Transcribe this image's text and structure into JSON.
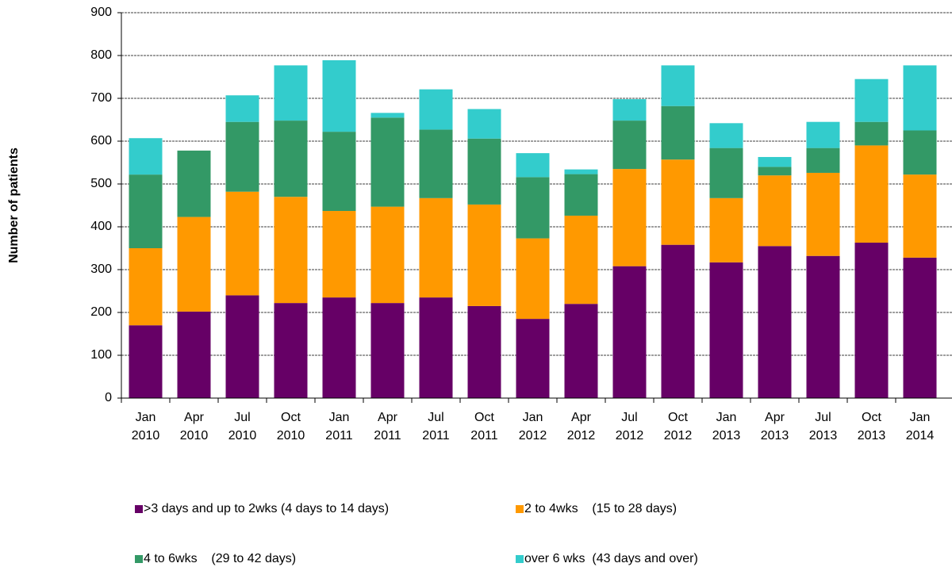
{
  "chart_data": {
    "type": "stacked_bar",
    "y_axis_label": "Number of patients",
    "categories": [
      "Jan 2010",
      "Apr 2010",
      "Jul 2010",
      "Oct 2010",
      "Jan 2011",
      "Apr 2011",
      "Jul 2011",
      "Oct 2011",
      "Jan 2012",
      "Apr 2012",
      "Jul 2012",
      "Oct 2012",
      "Jan 2013",
      "Apr 2013",
      "Jul 2013",
      "Oct 2013",
      "Jan 2014"
    ],
    "series": [
      {
        "name": ">3 days and up to 2wks (4 days to 14 days)",
        "color": "#660066",
        "values": [
          170,
          202,
          240,
          222,
          235,
          222,
          235,
          215,
          185,
          220,
          308,
          358,
          317,
          355,
          332,
          363,
          328
        ]
      },
      {
        "name": "2 to 4wks    (15 to 28 days)",
        "color": "#ff9900",
        "values": [
          180,
          221,
          242,
          248,
          202,
          225,
          232,
          237,
          188,
          206,
          227,
          199,
          150,
          165,
          194,
          227,
          194
        ]
      },
      {
        "name": "4 to 6wks    (29 to 42 days)",
        "color": "#339966",
        "values": [
          172,
          155,
          163,
          178,
          185,
          208,
          160,
          154,
          143,
          97,
          113,
          125,
          117,
          20,
          58,
          55,
          103
        ]
      },
      {
        "name": "over 6 wks  (43 days and over)",
        "color": "#33cccc",
        "values": [
          85,
          0,
          62,
          129,
          167,
          11,
          94,
          69,
          56,
          11,
          50,
          95,
          58,
          23,
          61,
          100,
          152
        ]
      }
    ],
    "ylim": [
      0,
      900
    ],
    "yticks": [
      0,
      100,
      200,
      300,
      400,
      500,
      600,
      700,
      800,
      900
    ],
    "grid": true
  }
}
